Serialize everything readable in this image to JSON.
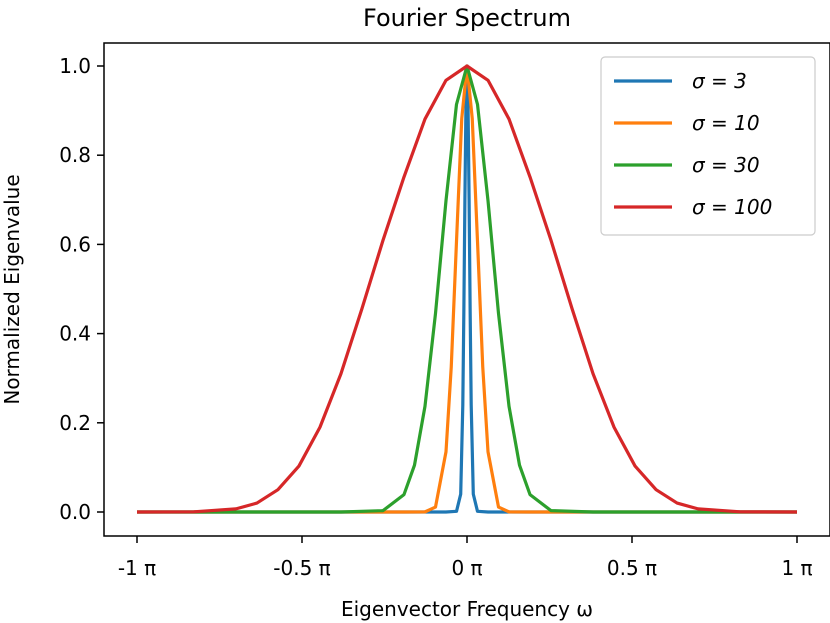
{
  "chart_data": {
    "type": "line",
    "title": "Fourier Spectrum",
    "xlabel": "Eigenvector Frequency ω",
    "ylabel": "Normalized Eigenvalue",
    "xlim": [
      -3.14159,
      3.14159
    ],
    "ylim": [
      0.0,
      1.0
    ],
    "x_ticks": [
      {
        "value": -3.14159,
        "label": "-1 π"
      },
      {
        "value": -1.5708,
        "label": "-0.5 π"
      },
      {
        "value": 0,
        "label": "0 π"
      },
      {
        "value": 1.5708,
        "label": "0.5 π"
      },
      {
        "value": 3.14159,
        "label": "1 π"
      }
    ],
    "y_ticks": [
      {
        "value": 0.0,
        "label": "0.0"
      },
      {
        "value": 0.2,
        "label": "0.2"
      },
      {
        "value": 0.4,
        "label": "0.4"
      },
      {
        "value": 0.6,
        "label": "0.6"
      },
      {
        "value": 0.8,
        "label": "0.8"
      },
      {
        "value": 1.0,
        "label": "1.0"
      }
    ],
    "grid": false,
    "legend_position": "top-right",
    "series": [
      {
        "name": "σ = 3",
        "color": "#1f77b4",
        "x": [
          -3.1416,
          -0.2,
          -0.1,
          -0.06,
          -0.04,
          -0.03,
          -0.02,
          -0.01,
          0,
          0.01,
          0.02,
          0.03,
          0.04,
          0.06,
          0.1,
          0.2,
          3.1416
        ],
        "y": [
          0,
          0,
          0.0015,
          0.04,
          0.24,
          0.45,
          0.7,
          0.91,
          1,
          0.91,
          0.7,
          0.45,
          0.24,
          0.04,
          0.0015,
          0,
          0
        ]
      },
      {
        "name": "σ = 10",
        "color": "#ff7f0e",
        "x": [
          -3.1416,
          -0.6,
          -0.4,
          -0.3,
          -0.2,
          -0.15,
          -0.1,
          -0.05,
          0,
          0.05,
          0.1,
          0.15,
          0.2,
          0.3,
          0.4,
          0.6,
          3.1416
        ],
        "y": [
          0,
          0,
          0.0003,
          0.011,
          0.135,
          0.325,
          0.607,
          0.882,
          1,
          0.882,
          0.607,
          0.325,
          0.135,
          0.011,
          0.0003,
          0,
          0
        ]
      },
      {
        "name": "σ = 30",
        "color": "#2ca02c",
        "x": [
          -3.1416,
          -1.2,
          -0.8,
          -0.6,
          -0.5,
          -0.4,
          -0.3,
          -0.2,
          -0.1,
          0,
          0.1,
          0.2,
          0.3,
          0.4,
          0.5,
          0.6,
          0.8,
          1.2,
          3.1416
        ],
        "y": [
          0,
          0,
          0.003,
          0.039,
          0.105,
          0.237,
          0.445,
          0.698,
          0.914,
          1,
          0.914,
          0.698,
          0.445,
          0.237,
          0.105,
          0.039,
          0.003,
          0,
          0
        ]
      },
      {
        "name": "σ = 100",
        "color": "#d62728",
        "x": [
          -3.1416,
          -2.6,
          -2.2,
          -2.0,
          -1.8,
          -1.6,
          -1.4,
          -1.2,
          -1.0,
          -0.8,
          -0.6,
          -0.4,
          -0.2,
          0,
          0.2,
          0.4,
          0.6,
          0.8,
          1.0,
          1.2,
          1.4,
          1.6,
          1.8,
          2.0,
          2.2,
          2.6,
          3.1416
        ],
        "y": [
          0,
          0.0004,
          0.007,
          0.02,
          0.05,
          0.103,
          0.19,
          0.31,
          0.456,
          0.609,
          0.751,
          0.881,
          0.968,
          1,
          0.968,
          0.881,
          0.751,
          0.609,
          0.456,
          0.31,
          0.19,
          0.103,
          0.05,
          0.02,
          0.007,
          0.0004,
          0
        ]
      }
    ]
  }
}
